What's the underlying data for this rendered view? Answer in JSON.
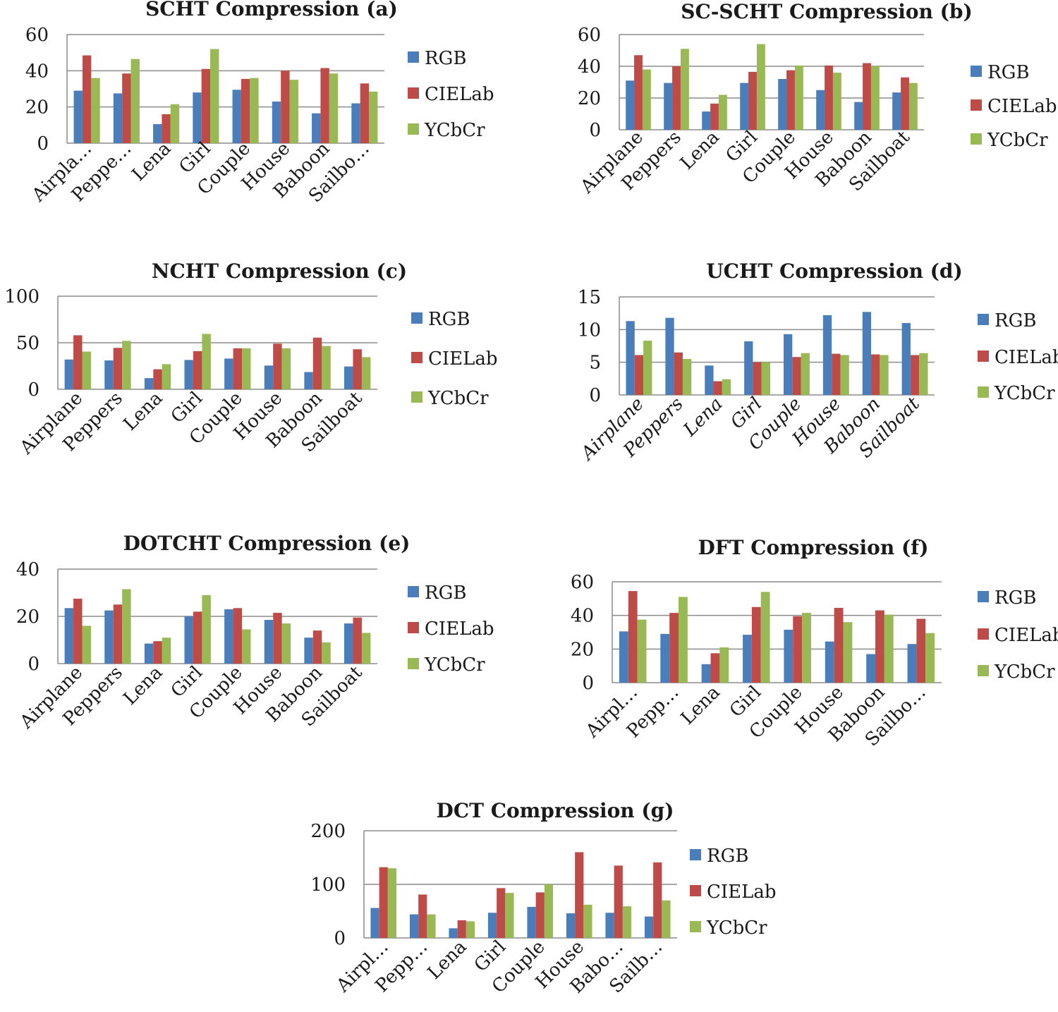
{
  "colors": {
    "RGB": "#4a7ebb",
    "CIELab": "#be4b48",
    "YCbCr": "#98b954"
  },
  "chart_data": [
    {
      "id": "a",
      "type": "bar",
      "title": "SCHT Compression  (a)",
      "categories": [
        "Airpla…",
        "Peppe…",
        "Lena",
        "Girl",
        "Couple",
        "House",
        "Baboon",
        "Sailbo…"
      ],
      "ylim": [
        0,
        60
      ],
      "yticks": [
        "0",
        "20",
        "40",
        "60"
      ],
      "grid": true,
      "legend": "right",
      "series": [
        {
          "name": "RGB",
          "values": [
            29,
            27.5,
            10.5,
            28,
            29.5,
            23,
            16.5,
            22
          ]
        },
        {
          "name": "CIELab",
          "values": [
            48.5,
            38.5,
            16,
            41,
            35.5,
            40,
            41.5,
            33
          ]
        },
        {
          "name": "YCbCr",
          "values": [
            36,
            46.5,
            21.5,
            52,
            36,
            35,
            38.5,
            28.5
          ]
        }
      ]
    },
    {
      "id": "b",
      "type": "bar",
      "title": "SC-SCHT Compression (b)",
      "categories": [
        "Airplane",
        "Peppers",
        "Lena",
        "Girl",
        "Couple",
        "House",
        "Baboon",
        "Sailboat"
      ],
      "ylim": [
        0,
        60
      ],
      "yticks": [
        "0",
        "20",
        "40",
        "60"
      ],
      "grid": true,
      "legend": "right",
      "series": [
        {
          "name": "RGB",
          "values": [
            31,
            29.5,
            11.5,
            29.5,
            32,
            25,
            17.5,
            23.5
          ]
        },
        {
          "name": "CIELab",
          "values": [
            47,
            40,
            16.5,
            36.5,
            37.5,
            40.5,
            42,
            33
          ]
        },
        {
          "name": "YCbCr",
          "values": [
            38,
            51,
            22,
            54,
            40.5,
            36,
            40,
            29.5
          ]
        }
      ]
    },
    {
      "id": "c",
      "type": "bar",
      "title": "NCHT Compression  (c)",
      "categories": [
        "Airplane",
        "Peppers",
        "Lena",
        "Girl",
        "Couple",
        "House",
        "Baboon",
        "Sailboat"
      ],
      "ylim": [
        0,
        100
      ],
      "yticks": [
        "0",
        "50",
        "100"
      ],
      "grid": true,
      "legend": "right",
      "series": [
        {
          "name": "RGB",
          "values": [
            32,
            31,
            12,
            31.5,
            33,
            25.5,
            18.5,
            24.5
          ]
        },
        {
          "name": "CIELab",
          "values": [
            58,
            44.5,
            21.5,
            41,
            44,
            49,
            55.5,
            43
          ]
        },
        {
          "name": "YCbCr",
          "values": [
            40.5,
            52,
            27,
            59.5,
            44,
            44,
            46.5,
            34.5
          ]
        }
      ]
    },
    {
      "id": "d",
      "type": "bar",
      "title": "UCHT Compression (d)",
      "categories": [
        "Airplane",
        "Peppers",
        "Lena",
        "Girl",
        "Couple",
        "House",
        "Baboon",
        "Sailboat"
      ],
      "ylim": [
        0,
        15
      ],
      "yticks": [
        "0",
        "5",
        "10",
        "15"
      ],
      "grid": true,
      "legend": "right",
      "series": [
        {
          "name": "RGB",
          "values": [
            11.3,
            11.8,
            4.5,
            8.2,
            9.3,
            12.2,
            12.7,
            11
          ]
        },
        {
          "name": "CIELab",
          "values": [
            6.1,
            6.5,
            2.1,
            5,
            5.8,
            6.3,
            6.2,
            6.1
          ]
        },
        {
          "name": "YCbCr",
          "values": [
            8.3,
            5.5,
            2.4,
            5,
            6.4,
            6.1,
            6.1,
            6.4
          ]
        }
      ]
    },
    {
      "id": "e",
      "type": "bar",
      "title": "DOTCHT Compression (e)",
      "categories": [
        "Airplane",
        "Peppers",
        "Lena",
        "Girl",
        "Couple",
        "House",
        "Baboon",
        "Sailboat"
      ],
      "ylim": [
        0,
        40
      ],
      "yticks": [
        "0",
        "20",
        "40"
      ],
      "grid": true,
      "legend": "right",
      "series": [
        {
          "name": "RGB",
          "values": [
            23.5,
            22.5,
            8.5,
            20,
            23,
            18.5,
            11,
            17
          ]
        },
        {
          "name": "CIELab",
          "values": [
            27.5,
            25,
            9.5,
            22,
            23.5,
            21.5,
            14,
            19.5
          ]
        },
        {
          "name": "YCbCr",
          "values": [
            16,
            31.5,
            11,
            29,
            14.5,
            17,
            9,
            13
          ]
        }
      ]
    },
    {
      "id": "f",
      "type": "bar",
      "title": "DFT Compression  (f)",
      "categories": [
        "Airpl…",
        "Pepp…",
        "Lena",
        "Girl",
        "Couple",
        "House",
        "Baboon",
        "Sailbo…"
      ],
      "ylim": [
        0,
        60
      ],
      "yticks": [
        "0",
        "20",
        "40",
        "60"
      ],
      "grid": true,
      "legend": "right",
      "series": [
        {
          "name": "RGB",
          "values": [
            30.5,
            29,
            11,
            28.5,
            31.5,
            24.5,
            17,
            23
          ]
        },
        {
          "name": "CIELab",
          "values": [
            54.5,
            41.5,
            17.5,
            45,
            39.5,
            44.5,
            43,
            38
          ]
        },
        {
          "name": "YCbCr",
          "values": [
            37.5,
            51,
            21,
            54,
            41.5,
            36,
            40.5,
            29.5
          ]
        }
      ]
    },
    {
      "id": "g",
      "type": "bar",
      "title": "DCT Compression (g)",
      "categories": [
        "Airpl…",
        "Pepp…",
        "Lena",
        "Girl",
        "Couple",
        "House",
        "Babo…",
        "Sailb…"
      ],
      "ylim": [
        0,
        200
      ],
      "yticks": [
        "0",
        "100",
        "200"
      ],
      "grid": true,
      "legend": "right",
      "series": [
        {
          "name": "RGB",
          "values": [
            56,
            44,
            18,
            47,
            58,
            46,
            47,
            40
          ]
        },
        {
          "name": "CIELab",
          "values": [
            132,
            81,
            33,
            93,
            85,
            160,
            135,
            141
          ]
        },
        {
          "name": "YCbCr",
          "values": [
            130,
            44,
            31,
            84,
            100,
            62,
            59,
            70
          ]
        }
      ]
    }
  ]
}
